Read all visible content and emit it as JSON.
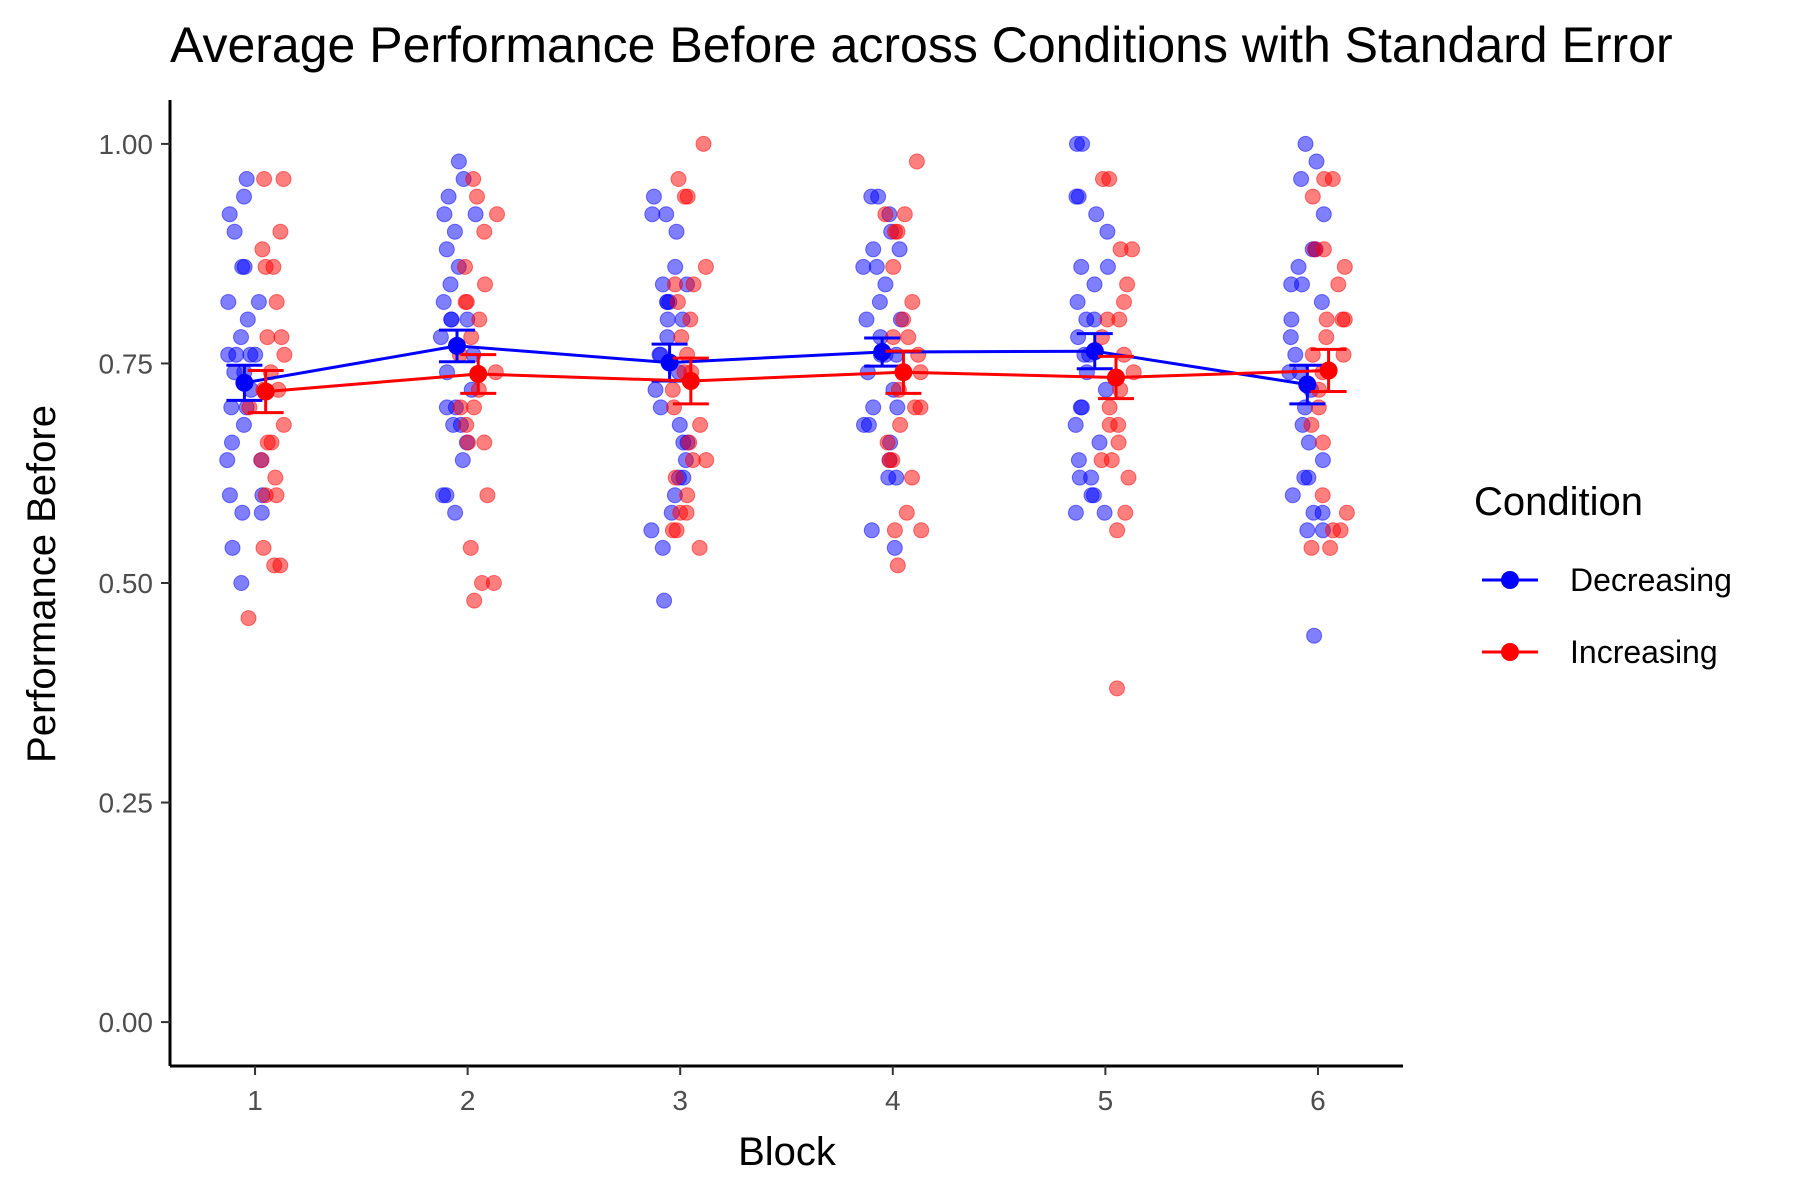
{
  "chart_data": {
    "type": "scatter",
    "title": "Average Performance Before across Conditions with Standard Error",
    "xlabel": "Block",
    "ylabel": "Performance Before",
    "x": [
      1,
      2,
      3,
      4,
      5,
      6
    ],
    "xticks": [
      "1",
      "2",
      "3",
      "4",
      "5",
      "6"
    ],
    "yticks": [
      "0.00",
      "0.25",
      "0.50",
      "0.75",
      "1.00"
    ],
    "ytick_values": [
      0,
      0.25,
      0.5,
      0.75,
      1.0
    ],
    "xlim": [
      0.6,
      6.4
    ],
    "ylim": [
      -0.05,
      1.05
    ],
    "grid": false,
    "legend": {
      "title": "Condition",
      "position": "right"
    },
    "series": [
      {
        "name": "Decreasing",
        "color": "#0000ff",
        "means": [
          0.728,
          0.77,
          0.751,
          0.763,
          0.764,
          0.726
        ],
        "se": [
          0.02,
          0.018,
          0.021,
          0.016,
          0.02,
          0.022
        ],
        "points": [
          [
            0.94,
            0.96,
            0.92,
            0.9,
            0.86,
            0.86,
            0.82,
            0.82,
            0.8,
            0.78,
            0.76,
            0.76,
            0.76,
            0.76,
            0.74,
            0.74,
            0.72,
            0.7,
            0.7,
            0.68,
            0.66,
            0.64,
            0.64,
            0.6,
            0.6,
            0.58,
            0.58,
            0.54,
            0.5
          ],
          [
            0.98,
            0.96,
            0.94,
            0.92,
            0.92,
            0.9,
            0.88,
            0.86,
            0.84,
            0.82,
            0.8,
            0.8,
            0.8,
            0.78,
            0.76,
            0.74,
            0.72,
            0.7,
            0.7,
            0.68,
            0.68,
            0.66,
            0.64,
            0.6,
            0.6,
            0.58
          ],
          [
            0.94,
            0.92,
            0.92,
            0.9,
            0.86,
            0.84,
            0.84,
            0.82,
            0.82,
            0.82,
            0.8,
            0.8,
            0.78,
            0.76,
            0.76,
            0.74,
            0.72,
            0.7,
            0.68,
            0.66,
            0.66,
            0.64,
            0.62,
            0.62,
            0.6,
            0.58,
            0.56,
            0.54,
            0.48
          ],
          [
            0.94,
            0.94,
            0.92,
            0.9,
            0.88,
            0.88,
            0.86,
            0.86,
            0.84,
            0.82,
            0.8,
            0.8,
            0.78,
            0.76,
            0.76,
            0.76,
            0.74,
            0.72,
            0.7,
            0.7,
            0.68,
            0.68,
            0.66,
            0.64,
            0.62,
            0.62,
            0.56,
            0.54
          ],
          [
            1.0,
            1.0,
            0.94,
            0.94,
            0.92,
            0.9,
            0.86,
            0.86,
            0.84,
            0.82,
            0.8,
            0.8,
            0.78,
            0.76,
            0.76,
            0.74,
            0.72,
            0.7,
            0.7,
            0.68,
            0.66,
            0.64,
            0.62,
            0.62,
            0.6,
            0.6,
            0.58,
            0.58
          ],
          [
            1.0,
            0.98,
            0.96,
            0.92,
            0.88,
            0.88,
            0.86,
            0.84,
            0.84,
            0.82,
            0.8,
            0.78,
            0.76,
            0.74,
            0.74,
            0.72,
            0.7,
            0.68,
            0.66,
            0.64,
            0.62,
            0.62,
            0.6,
            0.58,
            0.58,
            0.56,
            0.56,
            0.44
          ]
        ]
      },
      {
        "name": "Increasing",
        "color": "#ff0000",
        "means": [
          0.718,
          0.738,
          0.73,
          0.74,
          0.734,
          0.742
        ],
        "se": [
          0.024,
          0.022,
          0.026,
          0.024,
          0.024,
          0.024
        ],
        "points": [
          [
            0.96,
            0.96,
            0.9,
            0.88,
            0.86,
            0.86,
            0.82,
            0.78,
            0.78,
            0.76,
            0.74,
            0.72,
            0.72,
            0.7,
            0.68,
            0.66,
            0.66,
            0.64,
            0.62,
            0.6,
            0.6,
            0.54,
            0.52,
            0.52,
            0.46
          ],
          [
            0.96,
            0.94,
            0.92,
            0.9,
            0.86,
            0.84,
            0.82,
            0.82,
            0.8,
            0.78,
            0.76,
            0.74,
            0.72,
            0.7,
            0.7,
            0.68,
            0.66,
            0.66,
            0.6,
            0.54,
            0.5,
            0.5,
            0.48
          ],
          [
            1.0,
            0.96,
            0.94,
            0.94,
            0.86,
            0.84,
            0.84,
            0.82,
            0.8,
            0.78,
            0.76,
            0.74,
            0.74,
            0.72,
            0.7,
            0.68,
            0.66,
            0.64,
            0.64,
            0.62,
            0.6,
            0.58,
            0.58,
            0.56,
            0.56,
            0.54
          ],
          [
            0.98,
            0.92,
            0.92,
            0.9,
            0.9,
            0.86,
            0.82,
            0.8,
            0.78,
            0.78,
            0.76,
            0.74,
            0.72,
            0.7,
            0.7,
            0.68,
            0.66,
            0.64,
            0.64,
            0.62,
            0.58,
            0.56,
            0.56,
            0.52
          ],
          [
            0.96,
            0.96,
            0.88,
            0.88,
            0.84,
            0.82,
            0.8,
            0.8,
            0.78,
            0.76,
            0.74,
            0.72,
            0.7,
            0.68,
            0.68,
            0.66,
            0.64,
            0.64,
            0.62,
            0.58,
            0.56,
            0.38
          ],
          [
            0.96,
            0.96,
            0.94,
            0.88,
            0.88,
            0.86,
            0.84,
            0.8,
            0.8,
            0.8,
            0.78,
            0.76,
            0.76,
            0.74,
            0.72,
            0.7,
            0.68,
            0.66,
            0.6,
            0.58,
            0.56,
            0.56,
            0.54,
            0.54
          ]
        ]
      }
    ]
  }
}
